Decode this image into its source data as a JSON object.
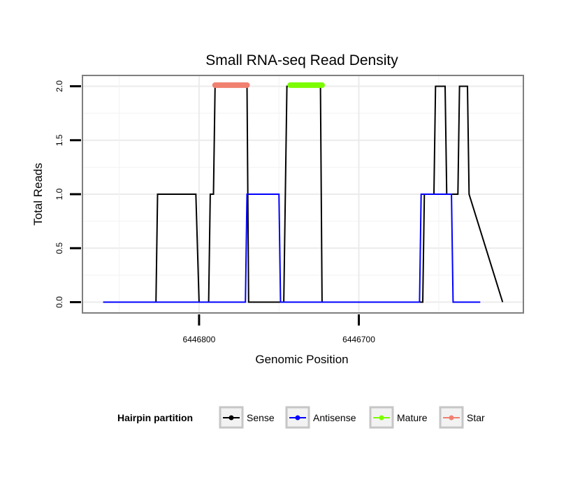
{
  "chart_data": {
    "type": "line",
    "title": "Small RNA-seq Read Density",
    "xlabel": "Genomic Position",
    "ylabel": "Total Reads",
    "x_reversed": true,
    "xlim": [
      6446873,
      6446597
    ],
    "ylim": [
      -0.1,
      2.1
    ],
    "xticks": [
      6446800,
      6446700
    ],
    "xtick_labels": [
      "6446800",
      "6446700"
    ],
    "yticks": [
      0,
      0.5,
      1,
      1.5,
      2
    ],
    "ytick_labels": [
      "0.0",
      "0.5",
      "1.0",
      "1.5",
      "2.0"
    ],
    "grid": true,
    "legend": {
      "title": "Hairpin partition",
      "position": "bottom",
      "entries": [
        "Sense",
        "Antisense",
        "Mature",
        "Star"
      ]
    },
    "series": [
      {
        "name": "Sense",
        "color": "#000000",
        "style": "line",
        "x": [
          6446860,
          6446827,
          6446826,
          6446802,
          6446800,
          6446794,
          6446793,
          6446791,
          6446790,
          6446770,
          6446769,
          6446747,
          6446745,
          6446724,
          6446723,
          6446660,
          6446659,
          6446653,
          6446652,
          6446646,
          6446645,
          6446638,
          6446637,
          6446632,
          6446631,
          6446610
        ],
        "values": [
          0,
          0,
          1,
          1,
          0,
          0,
          1,
          1,
          2,
          2,
          0,
          0,
          2,
          2,
          0,
          0,
          1,
          1,
          2,
          2,
          1,
          1,
          2,
          2,
          1,
          0
        ]
      },
      {
        "name": "Antisense",
        "color": "#0000ff",
        "style": "line",
        "x": [
          6446860,
          6446771,
          6446770,
          6446750,
          6446749,
          6446662,
          6446661,
          6446642,
          6446641,
          6446624
        ],
        "values": [
          0,
          0,
          1,
          1,
          0,
          0,
          1,
          1,
          0,
          0
        ]
      },
      {
        "name": "Mature",
        "color": "#7cfc00",
        "style": "segment",
        "x": [
          6446743,
          6446723
        ],
        "values": [
          2.01,
          2.01
        ]
      },
      {
        "name": "Star",
        "color": "#f08070",
        "style": "segment",
        "x": [
          6446790,
          6446770
        ],
        "values": [
          2.01,
          2.01
        ]
      }
    ]
  }
}
